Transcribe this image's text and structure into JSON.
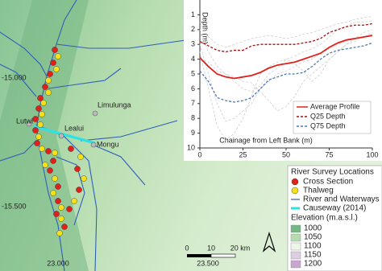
{
  "map": {
    "lat_labels": [
      "-15.000",
      "-15.500"
    ],
    "lon_labels": [
      "23.000",
      "23.500"
    ],
    "places": [
      "Limulunga",
      "Lutwi",
      "Lealui",
      "Mongu"
    ],
    "scale_labels": [
      "0",
      "10",
      "20 km"
    ]
  },
  "legend": {
    "title": "River Survey Locations",
    "items": [
      {
        "label": "Cross Section",
        "color": "#e0201b"
      },
      {
        "label": "Thalweg",
        "color": "#f5e11a"
      },
      {
        "label": "River and Waterways",
        "color": "#2f5fb8"
      },
      {
        "label": "Causeway (2014)",
        "color": "#29e3e6"
      }
    ],
    "elevation_title": "Elevation (m.a.s.l.)",
    "elevation": [
      {
        "label": "1000",
        "color": "#74b784"
      },
      {
        "label": "1050",
        "color": "#b4dcb0"
      },
      {
        "label": "1100",
        "color": "#eef6ea"
      },
      {
        "label": "1150",
        "color": "#ddcde2"
      },
      {
        "label": "1200",
        "color": "#c9a6cf"
      }
    ]
  },
  "chart_data": {
    "type": "line",
    "y_label": "Depth (m)",
    "x_label": "Chainage from Left Bank (m)",
    "x": [
      0,
      5,
      10,
      15,
      20,
      25,
      30,
      35,
      40,
      45,
      50,
      55,
      60,
      65,
      70,
      75,
      80,
      85,
      90,
      95,
      100
    ],
    "xlim": [
      0,
      100
    ],
    "xticks": [
      0,
      25,
      50,
      75,
      100
    ],
    "ylim": [
      0,
      10
    ],
    "yticks": [
      1,
      2,
      3,
      4,
      5,
      6,
      7,
      8,
      9,
      10
    ],
    "y_reversed": true,
    "series": [
      {
        "name": "Average Profile",
        "color": "#e0201b",
        "dash": false,
        "values": [
          3.9,
          4.5,
          5.0,
          5.2,
          5.3,
          5.2,
          5.1,
          4.9,
          4.6,
          4.4,
          4.3,
          4.2,
          4.0,
          3.8,
          3.6,
          3.2,
          2.9,
          2.7,
          2.6,
          2.5,
          2.4
        ]
      },
      {
        "name": "Q25 Depth",
        "color": "#a01010",
        "dash": true,
        "values": [
          2.8,
          3.1,
          3.4,
          3.5,
          3.4,
          3.4,
          3.1,
          3.0,
          3.0,
          3.0,
          3.0,
          3.0,
          2.9,
          2.8,
          2.6,
          2.2,
          2.0,
          1.8,
          1.7,
          1.7,
          1.6
        ]
      },
      {
        "name": "Q75 Depth",
        "color": "#4a78b8",
        "dash": true,
        "values": [
          4.8,
          5.5,
          6.6,
          6.8,
          6.9,
          6.8,
          6.6,
          6.0,
          5.4,
          5.2,
          5.0,
          5.0,
          4.9,
          4.5,
          4.0,
          3.6,
          3.4,
          3.3,
          3.2,
          3.1,
          2.9
        ]
      }
    ],
    "profiles_color": "#c8c8c8",
    "profiles": [
      [
        2.0,
        3.5,
        4.5,
        5.0,
        5.5,
        6.0,
        6.2,
        5.8,
        5.0,
        4.6,
        4.0,
        3.8,
        3.5,
        3.3,
        3.0,
        2.5,
        2.0,
        1.8,
        1.5,
        1.5,
        1.4
      ],
      [
        3.0,
        5.0,
        7.0,
        8.2,
        8.0,
        7.5,
        7.0,
        6.0,
        5.5,
        5.0,
        4.8,
        4.5,
        4.2,
        4.0,
        3.6,
        3.3,
        3.0,
        2.8,
        2.6,
        2.5,
        2.3
      ],
      [
        4.0,
        4.2,
        4.8,
        5.0,
        5.2,
        5.5,
        5.6,
        6.2,
        6.8,
        7.5,
        7.2,
        6.5,
        5.5,
        5.0,
        4.5,
        4.0,
        3.5,
        3.0,
        2.8,
        2.5,
        2.2
      ],
      [
        1.5,
        2.5,
        3.0,
        3.2,
        3.0,
        2.8,
        2.6,
        2.5,
        2.4,
        2.5,
        2.6,
        2.5,
        2.3,
        2.2,
        2.0,
        1.8,
        1.6,
        1.5,
        1.3,
        1.2,
        1.1
      ],
      [
        3.5,
        6.0,
        8.5,
        9.5,
        9.0,
        8.0,
        6.5,
        5.0,
        4.5,
        4.2,
        4.0,
        4.3,
        4.8,
        5.5,
        5.0,
        4.0,
        3.5,
        3.0,
        2.6,
        2.2,
        2.0
      ]
    ]
  }
}
